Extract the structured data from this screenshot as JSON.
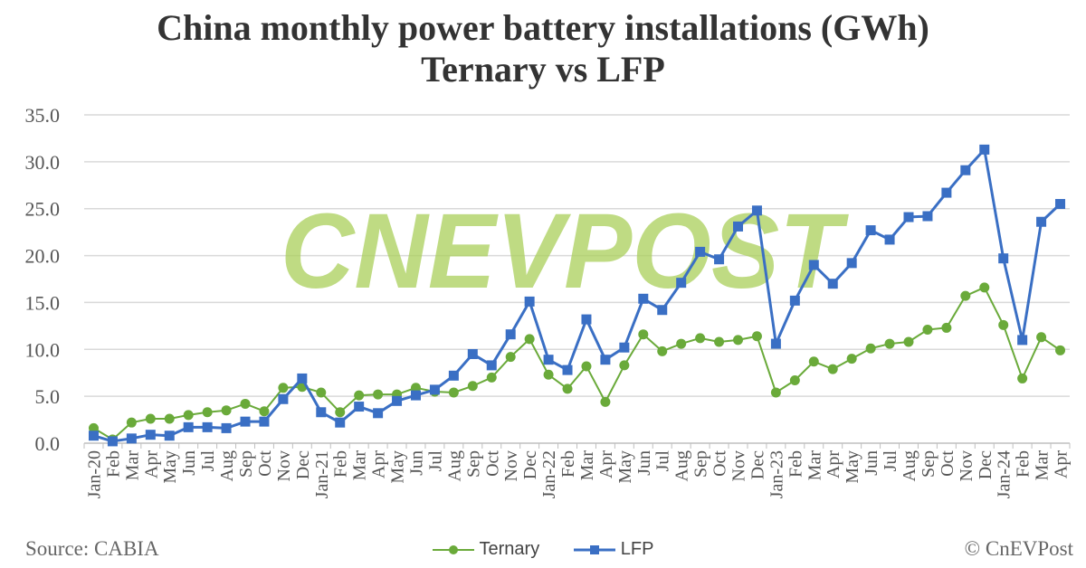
{
  "footer": {
    "source": "Source: CABIA",
    "copyright": "© CnEVPost"
  },
  "watermark": "CNEVPOST",
  "chart_data": {
    "type": "line",
    "title": [
      "China monthly power battery installations (GWh)",
      "Ternary vs LFP"
    ],
    "xlabel": "",
    "ylabel": "",
    "ylim": [
      0,
      35
    ],
    "yticks": [
      "0.0",
      "5.0",
      "10.0",
      "15.0",
      "20.0",
      "25.0",
      "30.0",
      "35.0"
    ],
    "grid": true,
    "legend_position": "bottom",
    "categories": [
      "Jan-20",
      "Feb",
      "Mar",
      "Apr",
      "May",
      "Jun",
      "Jul",
      "Aug",
      "Sep",
      "Oct",
      "Nov",
      "Dec",
      "Jan-21",
      "Feb",
      "Mar",
      "Apr",
      "May",
      "Jun",
      "Jul",
      "Aug",
      "Sep",
      "Oct",
      "Nov",
      "Dec",
      "Jan-22",
      "Feb",
      "Mar",
      "Apr",
      "May",
      "Jun",
      "Jul",
      "Aug",
      "Sep",
      "Oct",
      "Nov",
      "Dec",
      "Jan-23",
      "Feb",
      "Mar",
      "Apr",
      "May",
      "Jun",
      "Jul",
      "Aug",
      "Sep",
      "Oct",
      "Nov",
      "Dec",
      "Jan-24",
      "Feb",
      "Mar",
      "Apr"
    ],
    "series": [
      {
        "name": "Ternary",
        "color": "#6aaa3a",
        "marker": "circle",
        "values": [
          1.6,
          0.4,
          2.2,
          2.6,
          2.6,
          3.0,
          3.3,
          3.5,
          4.2,
          3.4,
          5.9,
          6.0,
          5.4,
          3.3,
          5.1,
          5.2,
          5.2,
          5.9,
          5.5,
          5.4,
          6.1,
          7.0,
          9.2,
          11.1,
          7.3,
          5.8,
          8.2,
          4.4,
          8.3,
          11.6,
          9.8,
          10.6,
          11.2,
          10.8,
          11.0,
          11.4,
          5.4,
          6.7,
          8.7,
          7.9,
          9.0,
          10.1,
          10.6,
          10.8,
          12.1,
          12.3,
          15.7,
          16.6,
          12.6,
          6.9,
          11.3,
          9.9
        ]
      },
      {
        "name": "LFP",
        "color": "#3a6fc4",
        "marker": "square",
        "values": [
          0.8,
          0.2,
          0.5,
          0.9,
          0.8,
          1.7,
          1.7,
          1.6,
          2.3,
          2.3,
          4.7,
          6.9,
          3.3,
          2.2,
          3.9,
          3.2,
          4.5,
          5.1,
          5.7,
          7.2,
          9.5,
          8.3,
          11.6,
          15.1,
          8.9,
          7.8,
          13.2,
          8.9,
          10.2,
          15.4,
          14.2,
          17.1,
          20.4,
          19.6,
          23.1,
          24.8,
          10.6,
          15.2,
          19.0,
          17.0,
          19.2,
          22.7,
          21.7,
          24.1,
          24.2,
          26.7,
          29.1,
          31.3,
          19.7,
          11.0,
          23.6,
          25.5
        ]
      }
    ]
  }
}
